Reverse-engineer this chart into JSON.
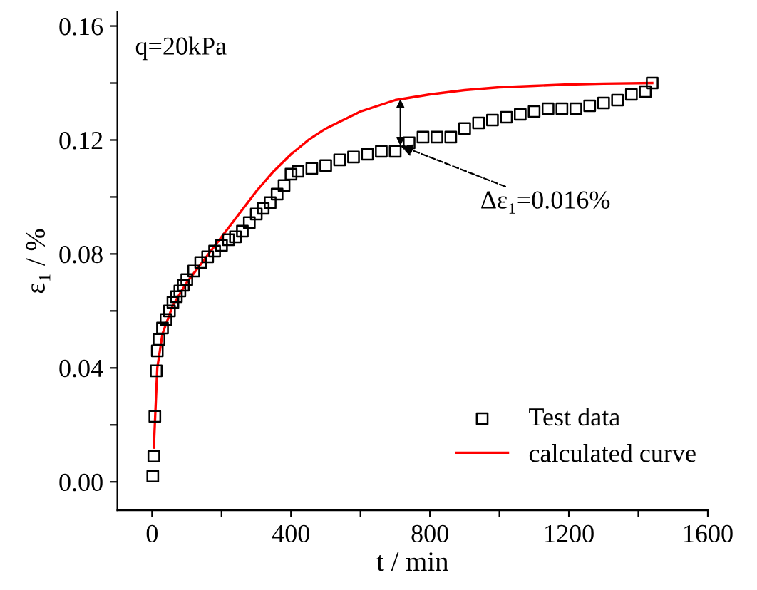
{
  "chart_data": {
    "type": "scatter",
    "xlabel": "t / min",
    "ylabel": "ε₁ / %",
    "xlim": [
      -100,
      1600
    ],
    "ylim": [
      -0.01,
      0.165
    ],
    "xticks": [
      0,
      {
        "value": 200,
        "label": null
      },
      400,
      {
        "value": 600,
        "label": null
      },
      800,
      {
        "value": 1000,
        "label": null
      },
      1200,
      {
        "value": 1400,
        "label": null
      },
      1600
    ],
    "yticks": [
      {
        "value": 0,
        "label": "0.00"
      },
      {
        "value": 0.02,
        "label": null
      },
      0.04,
      {
        "value": 0.06,
        "label": null
      },
      0.08,
      {
        "value": 0.1,
        "label": null
      },
      0.12,
      {
        "value": 0.14,
        "label": null
      },
      0.16
    ],
    "grid": false,
    "legend": "bottom right",
    "annotations": [
      "q=20kPa",
      {
        "text": "Δε₁=0.016%",
        "x": 715,
        "y": 0.118
      }
    ],
    "series": [
      {
        "name": "Test data",
        "marker": "square",
        "color": "#000000",
        "x": [
          2,
          5,
          8,
          12,
          15,
          20,
          30,
          40,
          50,
          60,
          70,
          80,
          90,
          100,
          120,
          140,
          160,
          180,
          200,
          220,
          240,
          260,
          280,
          300,
          320,
          340,
          360,
          380,
          400,
          420,
          460,
          500,
          540,
          580,
          620,
          660,
          700,
          740,
          780,
          820,
          860,
          900,
          940,
          980,
          1020,
          1060,
          1100,
          1140,
          1180,
          1220,
          1260,
          1300,
          1340,
          1380,
          1420,
          1440
        ],
        "values": [
          0.002,
          0.009,
          0.023,
          0.039,
          0.046,
          0.05,
          0.054,
          0.057,
          0.06,
          0.063,
          0.065,
          0.067,
          0.069,
          0.071,
          0.074,
          0.077,
          0.079,
          0.081,
          0.083,
          0.085,
          0.086,
          0.088,
          0.091,
          0.094,
          0.096,
          0.098,
          0.101,
          0.104,
          0.108,
          0.109,
          0.11,
          0.111,
          0.113,
          0.114,
          0.115,
          0.116,
          0.116,
          0.119,
          0.121,
          0.121,
          0.121,
          0.124,
          0.126,
          0.127,
          0.128,
          0.129,
          0.13,
          0.131,
          0.131,
          0.131,
          0.132,
          0.133,
          0.134,
          0.136,
          0.137,
          0.14
        ]
      },
      {
        "name": "calculated curve",
        "type": "line",
        "marker": "none",
        "line_style": "solid",
        "color": "#ff0000",
        "x": [
          5,
          15,
          30,
          60,
          100,
          150,
          200,
          250,
          300,
          350,
          400,
          450,
          500,
          550,
          600,
          650,
          700,
          750,
          800,
          900,
          1000,
          1100,
          1200,
          1300,
          1440
        ],
        "values": [
          0.012,
          0.04,
          0.052,
          0.062,
          0.07,
          0.078,
          0.086,
          0.094,
          0.102,
          0.109,
          0.115,
          0.12,
          0.124,
          0.127,
          0.13,
          0.132,
          0.134,
          0.135,
          0.136,
          0.1375,
          0.1385,
          0.139,
          0.1395,
          0.1398,
          0.14
        ]
      }
    ]
  }
}
